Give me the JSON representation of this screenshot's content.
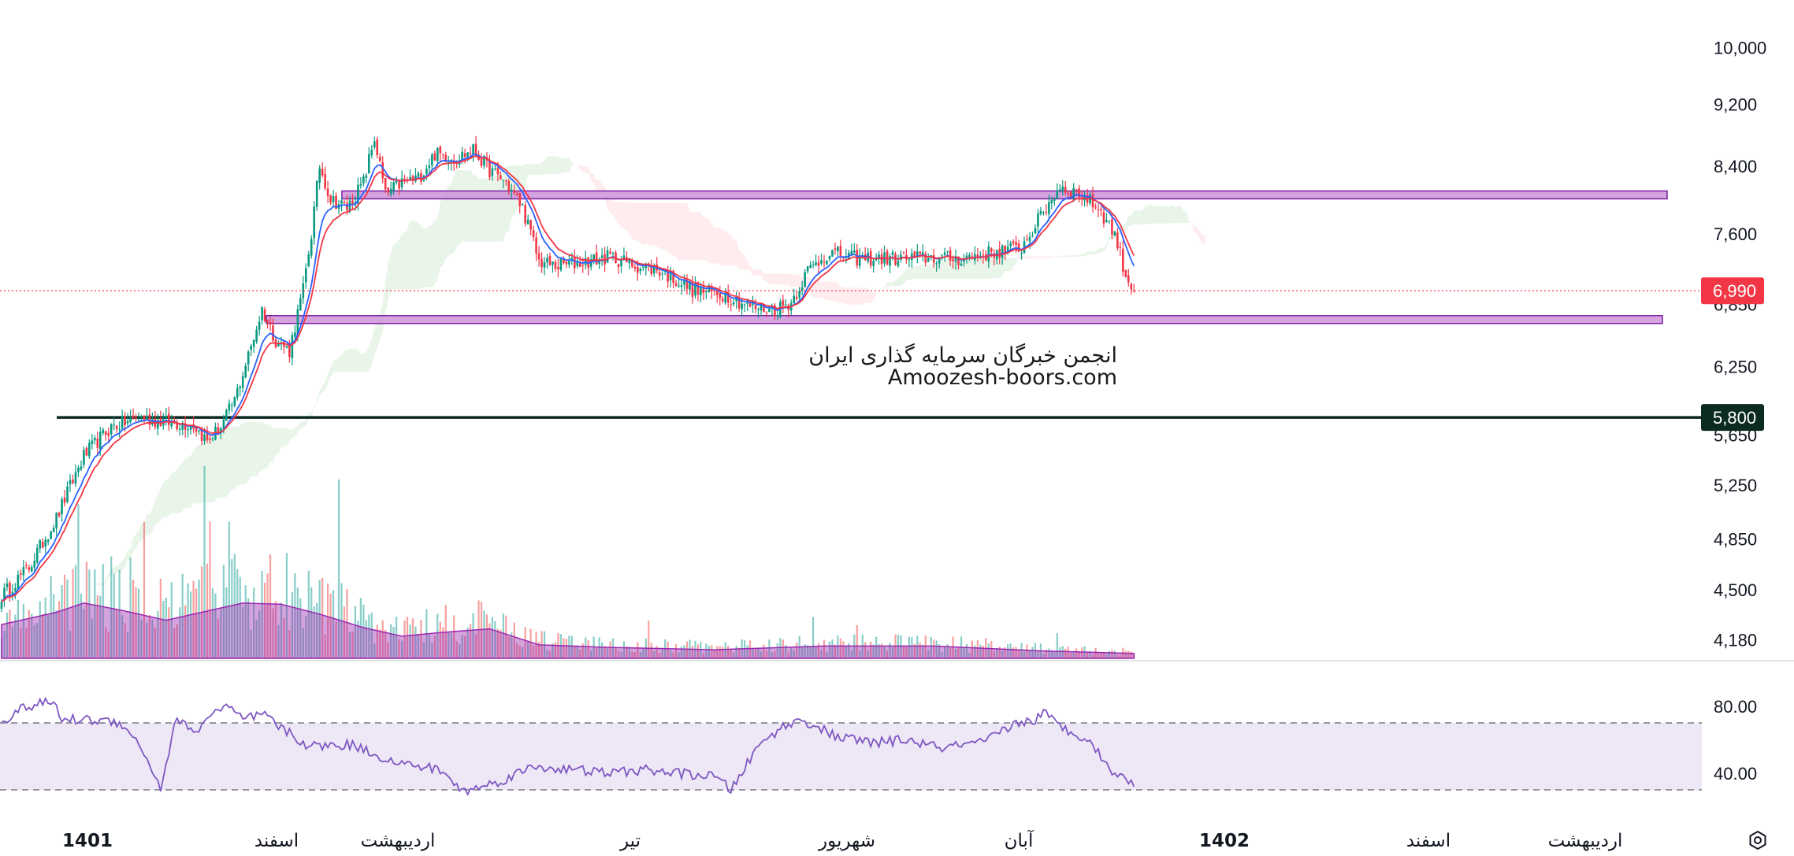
{
  "chart_data": {
    "type": "candlestick",
    "price_axis": {
      "ticks": [
        "10,000",
        "9,200",
        "8,400",
        "7,600",
        "6,850",
        "6,250",
        "5,650",
        "5,250",
        "4,850",
        "4,500",
        "4,180"
      ],
      "scale": "log",
      "range": [
        4100,
        10300
      ]
    },
    "rsi_axis": {
      "ticks": [
        "80.00",
        "40.00"
      ],
      "upper_band": 70,
      "lower_band": 30
    },
    "time_axis": {
      "labels": [
        {
          "text": "1401",
          "bold": true
        },
        {
          "text": "اسفند",
          "bold": false
        },
        {
          "text": "اردیبهشت",
          "bold": false
        },
        {
          "text": "تیر",
          "bold": false
        },
        {
          "text": "شهریور",
          "bold": false
        },
        {
          "text": "آبان",
          "bold": false
        },
        {
          "text": "1402",
          "bold": true
        },
        {
          "text": "اسفند",
          "bold": false
        },
        {
          "text": "اردیبهشت",
          "bold": false
        }
      ]
    },
    "last_price": {
      "value": 6990,
      "label": "6,990",
      "color": "#f23645"
    },
    "support_line": {
      "value": 5800,
      "label": "5,800",
      "color": "#0b2a20"
    },
    "zones": [
      {
        "name": "resistance zone",
        "value": 8050
      },
      {
        "name": "support zone",
        "value": 6700
      }
    ],
    "price_path": [
      [
        0,
        4460
      ],
      [
        10,
        4650
      ],
      [
        20,
        5000
      ],
      [
        30,
        5480
      ],
      [
        40,
        5720
      ],
      [
        50,
        5800
      ],
      [
        60,
        5760
      ],
      [
        70,
        5740
      ],
      [
        75,
        5600
      ],
      [
        80,
        5720
      ],
      [
        85,
        5950
      ],
      [
        90,
        6350
      ],
      [
        95,
        6800
      ],
      [
        100,
        6500
      ],
      [
        105,
        6400
      ],
      [
        110,
        7000
      ],
      [
        113,
        7600
      ],
      [
        116,
        8400
      ],
      [
        120,
        8000
      ],
      [
        126,
        7900
      ],
      [
        132,
        8200
      ],
      [
        136,
        8750
      ],
      [
        140,
        8050
      ],
      [
        146,
        8200
      ],
      [
        152,
        8250
      ],
      [
        158,
        8550
      ],
      [
        166,
        8500
      ],
      [
        172,
        8600
      ],
      [
        178,
        8350
      ],
      [
        184,
        8200
      ],
      [
        190,
        7900
      ],
      [
        196,
        7300
      ],
      [
        202,
        7250
      ],
      [
        214,
        7300
      ],
      [
        222,
        7350
      ],
      [
        232,
        7250
      ],
      [
        240,
        7200
      ],
      [
        252,
        7000
      ],
      [
        264,
        6950
      ],
      [
        274,
        6820
      ],
      [
        282,
        6800
      ],
      [
        288,
        6870
      ],
      [
        294,
        7200
      ],
      [
        302,
        7400
      ],
      [
        312,
        7330
      ],
      [
        324,
        7330
      ],
      [
        338,
        7340
      ],
      [
        350,
        7330
      ],
      [
        362,
        7400
      ],
      [
        372,
        7450
      ],
      [
        380,
        7850
      ],
      [
        386,
        8150
      ],
      [
        394,
        8050
      ],
      [
        400,
        7900
      ],
      [
        406,
        7600
      ],
      [
        410,
        7150
      ],
      [
        413,
        6990
      ]
    ],
    "rsi_path": [
      [
        0,
        71
      ],
      [
        8,
        79
      ],
      [
        16,
        82
      ],
      [
        19,
        82
      ],
      [
        22,
        72
      ],
      [
        30,
        72
      ],
      [
        40,
        71
      ],
      [
        45,
        69
      ],
      [
        52,
        52
      ],
      [
        58,
        31
      ],
      [
        64,
        74
      ],
      [
        70,
        63
      ],
      [
        76,
        75
      ],
      [
        82,
        80
      ],
      [
        88,
        72
      ],
      [
        96,
        75
      ],
      [
        100,
        69
      ],
      [
        112,
        56
      ],
      [
        128,
        57
      ],
      [
        144,
        46
      ],
      [
        160,
        42
      ],
      [
        168,
        29
      ],
      [
        180,
        34
      ],
      [
        194,
        44
      ],
      [
        208,
        42
      ],
      [
        222,
        40
      ],
      [
        234,
        42
      ],
      [
        246,
        40
      ],
      [
        260,
        38
      ],
      [
        266,
        30
      ],
      [
        276,
        56
      ],
      [
        284,
        67
      ],
      [
        292,
        72
      ],
      [
        304,
        62
      ],
      [
        318,
        58
      ],
      [
        330,
        60
      ],
      [
        342,
        55
      ],
      [
        358,
        58
      ],
      [
        370,
        70
      ],
      [
        376,
        71
      ],
      [
        380,
        76
      ],
      [
        388,
        66
      ],
      [
        396,
        61
      ],
      [
        404,
        43
      ],
      [
        408,
        38
      ],
      [
        413,
        33
      ]
    ],
    "volume_profile": [
      [
        0,
        0.55
      ],
      [
        20,
        0.75
      ],
      [
        30,
        0.9
      ],
      [
        44,
        0.78
      ],
      [
        60,
        0.62
      ],
      [
        70,
        0.72
      ],
      [
        88,
        0.9
      ],
      [
        102,
        0.88
      ],
      [
        116,
        0.72
      ],
      [
        132,
        0.5
      ],
      [
        146,
        0.36
      ],
      [
        160,
        0.42
      ],
      [
        178,
        0.48
      ],
      [
        196,
        0.22
      ],
      [
        220,
        0.18
      ],
      [
        260,
        0.14
      ],
      [
        300,
        0.2
      ],
      [
        340,
        0.2
      ],
      [
        380,
        0.12
      ],
      [
        413,
        0.08
      ]
    ],
    "indicators": [
      {
        "name": "ma-fast",
        "color": "#2962ff"
      },
      {
        "name": "ma-slow",
        "color": "#f23645"
      }
    ],
    "watermark": {
      "line1": "انجمن خبرگان سرمایه گذاری ایران",
      "line2": "Amoozesh-boors.com"
    },
    "colors": {
      "up": "#089981",
      "down": "#f23645",
      "zone_fill": "#ce93d8",
      "zone_stroke": "#7b1fa2",
      "rsi": "#7e57c2",
      "rsi_band": "#ede7f6"
    }
  }
}
